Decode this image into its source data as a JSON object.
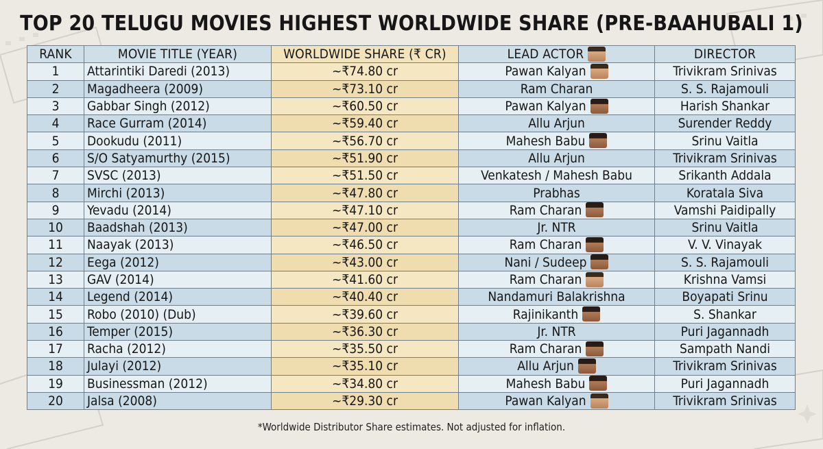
{
  "title": "TOP 20 TELUGU MOVIES HIGHEST WORLDWIDE SHARE (PRE-BAAHUBALI 1)",
  "headers": {
    "rank": "RANK",
    "movie": "MOVIE TITLE (YEAR)",
    "share": "WORLDWIDE SHARE (₹ CR)",
    "actor": "LEAD ACTOR",
    "director": "DIRECTOR"
  },
  "rows": [
    {
      "rank": "1",
      "movie": "Attarintiki Daredi (2013)",
      "share": "~₹74.80 cr",
      "actor": "Pawan Kalyan",
      "director": "Trivikram Srinivas",
      "photo": "light"
    },
    {
      "rank": "2",
      "movie": "Magadheera (2009)",
      "share": "~₹73.10 cr",
      "actor": "Ram Charan",
      "director": "S. S. Rajamouli",
      "photo": "none"
    },
    {
      "rank": "3",
      "movie": "Gabbar Singh (2012)",
      "share": "~₹60.50 cr",
      "actor": "Pawan Kalyan",
      "director": "Harish Shankar",
      "photo": "dark"
    },
    {
      "rank": "4",
      "movie": "Race Gurram (2014)",
      "share": "~₹59.40 cr",
      "actor": "Allu Arjun",
      "director": "Surender Reddy",
      "photo": "none"
    },
    {
      "rank": "5",
      "movie": "Dookudu (2011)",
      "share": "~₹56.70 cr",
      "actor": "Mahesh Babu",
      "director": "Srinu Vaitla",
      "photo": "dark"
    },
    {
      "rank": "6",
      "movie": "S/O Satyamurthy (2015)",
      "share": "~₹51.90 cr",
      "actor": "Allu Arjun",
      "director": "Trivikram Srinivas",
      "photo": "none"
    },
    {
      "rank": "7",
      "movie": "SVSC (2013)",
      "share": "~₹51.50 cr",
      "actor": "Venkatesh / Mahesh Babu",
      "director": "Srikanth Addala",
      "photo": "none"
    },
    {
      "rank": "8",
      "movie": "Mirchi (2013)",
      "share": "~₹47.80 cr",
      "actor": "Prabhas",
      "director": "Koratala Siva",
      "photo": "none"
    },
    {
      "rank": "9",
      "movie": "Yevadu (2014)",
      "share": "~₹47.10 cr",
      "actor": "Ram Charan",
      "director": "Vamshi Paidipally",
      "photo": "dark"
    },
    {
      "rank": "10",
      "movie": "Baadshah (2013)",
      "share": "~₹47.00 cr",
      "actor": "Jr. NTR",
      "director": "Srinu Vaitla",
      "photo": "none"
    },
    {
      "rank": "11",
      "movie": "Naayak (2013)",
      "share": "~₹46.50 cr",
      "actor": "Ram Charan",
      "director": "V. V. Vinayak",
      "photo": "dark"
    },
    {
      "rank": "12",
      "movie": "Eega (2012)",
      "share": "~₹43.00 cr",
      "actor": "Nani / Sudeep",
      "director": "S. S. Rajamouli",
      "photo": "dark"
    },
    {
      "rank": "13",
      "movie": "GAV (2014)",
      "share": "~₹41.60 cr",
      "actor": "Ram Charan",
      "director": "Krishna Vamsi",
      "photo": "light"
    },
    {
      "rank": "14",
      "movie": "Legend (2014)",
      "share": "~₹40.40 cr",
      "actor": "Nandamuri Balakrishna",
      "director": "Boyapati Srinu",
      "photo": "none"
    },
    {
      "rank": "15",
      "movie": "Robo (2010) (Dub)",
      "share": "~₹39.60 cr",
      "actor": "Rajinikanth",
      "director": "S. Shankar",
      "photo": "dark"
    },
    {
      "rank": "16",
      "movie": "Temper (2015)",
      "share": "~₹36.30 cr",
      "actor": "Jr. NTR",
      "director": "Puri Jagannadh",
      "photo": "none"
    },
    {
      "rank": "17",
      "movie": "Racha (2012)",
      "share": "~₹35.50 cr",
      "actor": "Ram Charan",
      "director": "Sampath Nandi",
      "photo": "dark"
    },
    {
      "rank": "18",
      "movie": "Julayi (2012)",
      "share": "~₹35.10 cr",
      "actor": "Allu Arjun",
      "director": "Trivikram Srinivas",
      "photo": "dark"
    },
    {
      "rank": "19",
      "movie": "Businessman (2012)",
      "share": "~₹34.80 cr",
      "actor": "Mahesh Babu",
      "director": "Puri Jagannadh",
      "photo": "dark"
    },
    {
      "rank": "20",
      "movie": "Jalsa (2008)",
      "share": "~₹29.30 cr",
      "actor": "Pawan Kalyan",
      "director": "Trivikram Srinivas",
      "photo": "light"
    }
  ],
  "footnote": "*Worldwide Distributor Share estimates. Not adjusted for inflation."
}
